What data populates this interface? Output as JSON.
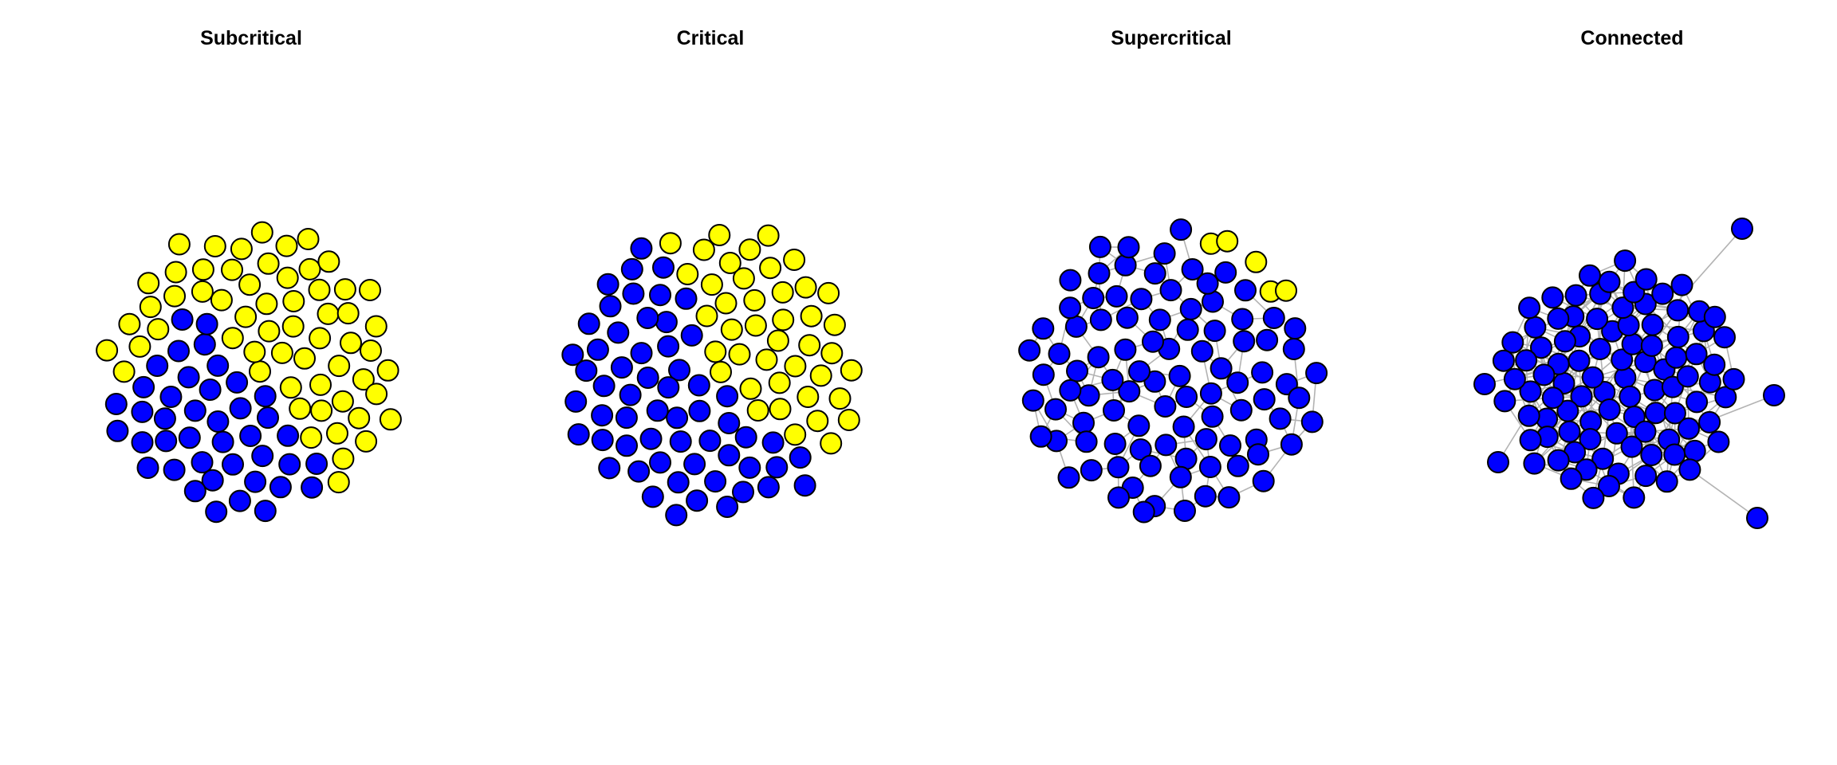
{
  "figure": {
    "panels": [
      {
        "title": "Subcritical"
      },
      {
        "title": "Critical"
      },
      {
        "title": "Supercritical"
      },
      {
        "title": "Connected"
      }
    ]
  },
  "colors": {
    "giant_component": "#0000ff",
    "isolated_node": "#ffff00",
    "node_outline": "#000000",
    "edge": "#b3b3b3",
    "background": "#ffffff"
  }
}
